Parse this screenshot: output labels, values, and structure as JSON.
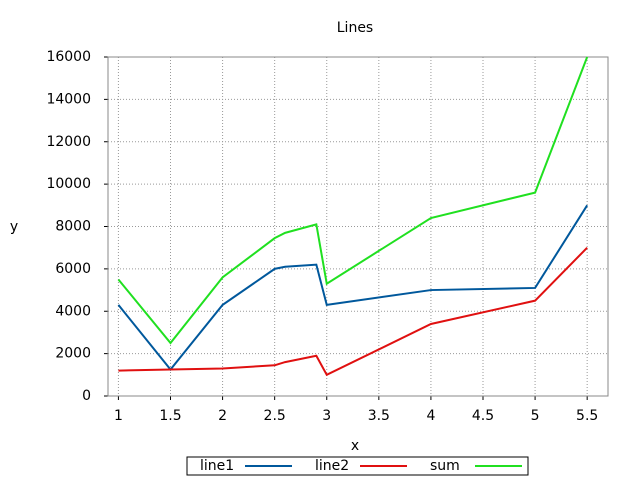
{
  "chart_data": {
    "type": "line",
    "title": "Lines",
    "x_label": "x",
    "y_label": "y",
    "x": [
      1,
      1.5,
      2,
      2.5,
      2.6,
      2.9,
      3,
      4,
      5,
      5.5
    ],
    "series": [
      {
        "name": "line1",
        "color": "#00589c",
        "values": [
          4300,
          1250,
          4300,
          6000,
          6100,
          6200,
          4300,
          5000,
          5100,
          9000
        ]
      },
      {
        "name": "line2",
        "color": "#e01010",
        "values": [
          1200,
          1250,
          1300,
          1450,
          1600,
          1900,
          1000,
          3400,
          4500,
          7000
        ]
      },
      {
        "name": "sum",
        "color": "#20e020",
        "values": [
          5500,
          2500,
          5600,
          7450,
          7700,
          8100,
          5300,
          8400,
          9600,
          16000
        ]
      }
    ],
    "xlim": [
      0.9,
      5.7
    ],
    "xticks": [
      1,
      1.5,
      2,
      2.5,
      3,
      3.5,
      4,
      4.5,
      5,
      5.5
    ],
    "ylim": [
      0,
      16000
    ],
    "yticks": [
      0,
      2000,
      4000,
      6000,
      8000,
      10000,
      12000,
      14000,
      16000
    ],
    "grid": true,
    "legend": "bottom"
  }
}
